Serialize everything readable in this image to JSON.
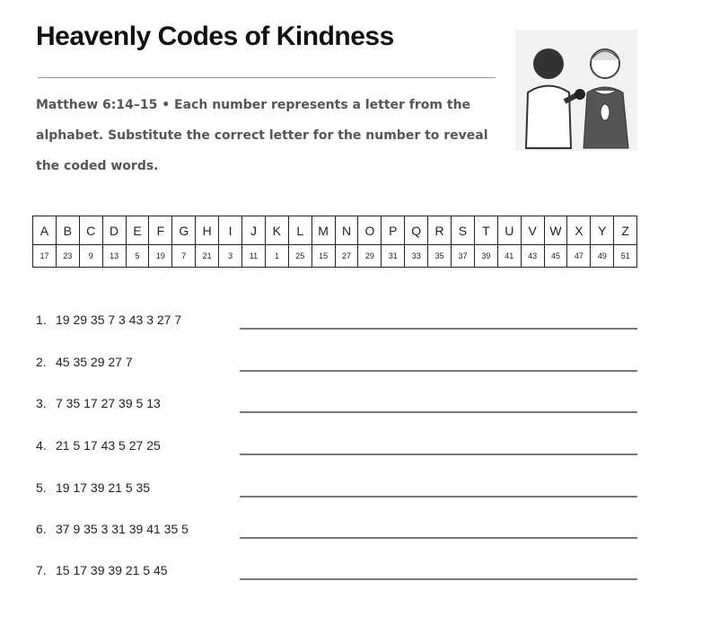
{
  "header": {
    "title": "Heavenly Codes of Kindness"
  },
  "instructions": {
    "reference": "Matthew 6:14–15",
    "separator": "•",
    "text": "Each number represents a letter from the alphabet. Substitute the correct letter for the number to reveal the coded words."
  },
  "key": {
    "letters": [
      "A",
      "B",
      "C",
      "D",
      "E",
      "F",
      "G",
      "H",
      "I",
      "J",
      "K",
      "L",
      "M",
      "N",
      "O",
      "P",
      "Q",
      "R",
      "S",
      "T",
      "U",
      "V",
      "W",
      "X",
      "Y",
      "Z"
    ],
    "numbers": [
      17,
      23,
      9,
      13,
      5,
      19,
      7,
      21,
      3,
      11,
      1,
      25,
      15,
      27,
      29,
      31,
      33,
      35,
      37,
      39,
      41,
      43,
      45,
      47,
      49,
      51
    ]
  },
  "puzzles": [
    {
      "label": "1.",
      "code": "19 29 35 7 3 43 3 27 7"
    },
    {
      "label": "2.",
      "code": "45 35 29 27 7"
    },
    {
      "label": "3.",
      "code": "7 35 17 27 39 5 13"
    },
    {
      "label": "4.",
      "code": "21 5 17 43 5 27 25"
    },
    {
      "label": "5.",
      "code": "19 17 39 21 5 35"
    },
    {
      "label": "6.",
      "code": "37 9 35 3 31 39 41 35 5"
    },
    {
      "label": "7.",
      "code": "15 17 39 39 21 5 45"
    }
  ]
}
